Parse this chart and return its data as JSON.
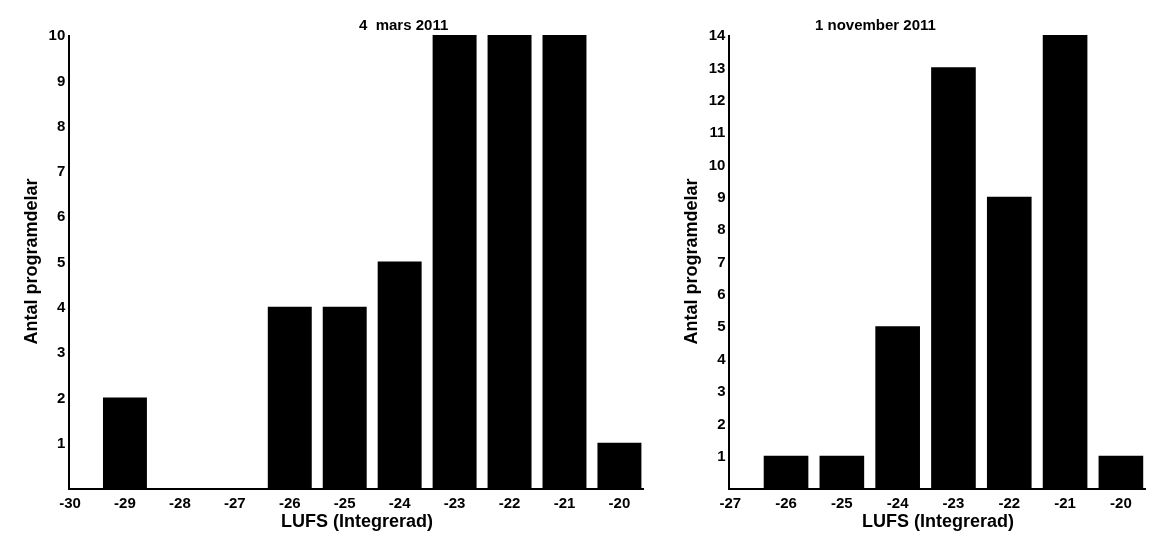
{
  "chart_data": [
    {
      "type": "bar",
      "title": "4  mars 2011",
      "xlabel": "LUFS (Integrerad)",
      "ylabel": "Antal programdelar",
      "color": "#000000",
      "x": [
        -29,
        -28,
        -27,
        -26,
        -25,
        -24,
        -23,
        -22,
        -21,
        -20
      ],
      "values": [
        2,
        0,
        0,
        4,
        4,
        5,
        10,
        10,
        10,
        1
      ],
      "xlim": [
        -30,
        -19.55
      ],
      "xticks": [
        -30,
        -29,
        -28,
        -27,
        -26,
        -25,
        -24,
        -23,
        -22,
        -21,
        -20
      ],
      "ylim": [
        0,
        10
      ],
      "yticks": [
        1,
        2,
        3,
        4,
        5,
        6,
        7,
        8,
        9,
        10
      ]
    },
    {
      "type": "bar",
      "title": "1 november 2011",
      "xlabel": "LUFS (Integrerad)",
      "ylabel": "Antal programdelar",
      "color": "#000000",
      "x": [
        -26,
        -25,
        -24,
        -23,
        -22,
        -21,
        -20
      ],
      "values": [
        1,
        1,
        5,
        13,
        9,
        14,
        1
      ],
      "xlim": [
        -27,
        -19.55
      ],
      "xticks": [
        -27,
        -26,
        -25,
        -24,
        -23,
        -22,
        -21,
        -20
      ],
      "ylim": [
        0,
        14
      ],
      "yticks": [
        1,
        2,
        3,
        4,
        5,
        6,
        7,
        8,
        9,
        10,
        11,
        12,
        13,
        14
      ]
    }
  ]
}
